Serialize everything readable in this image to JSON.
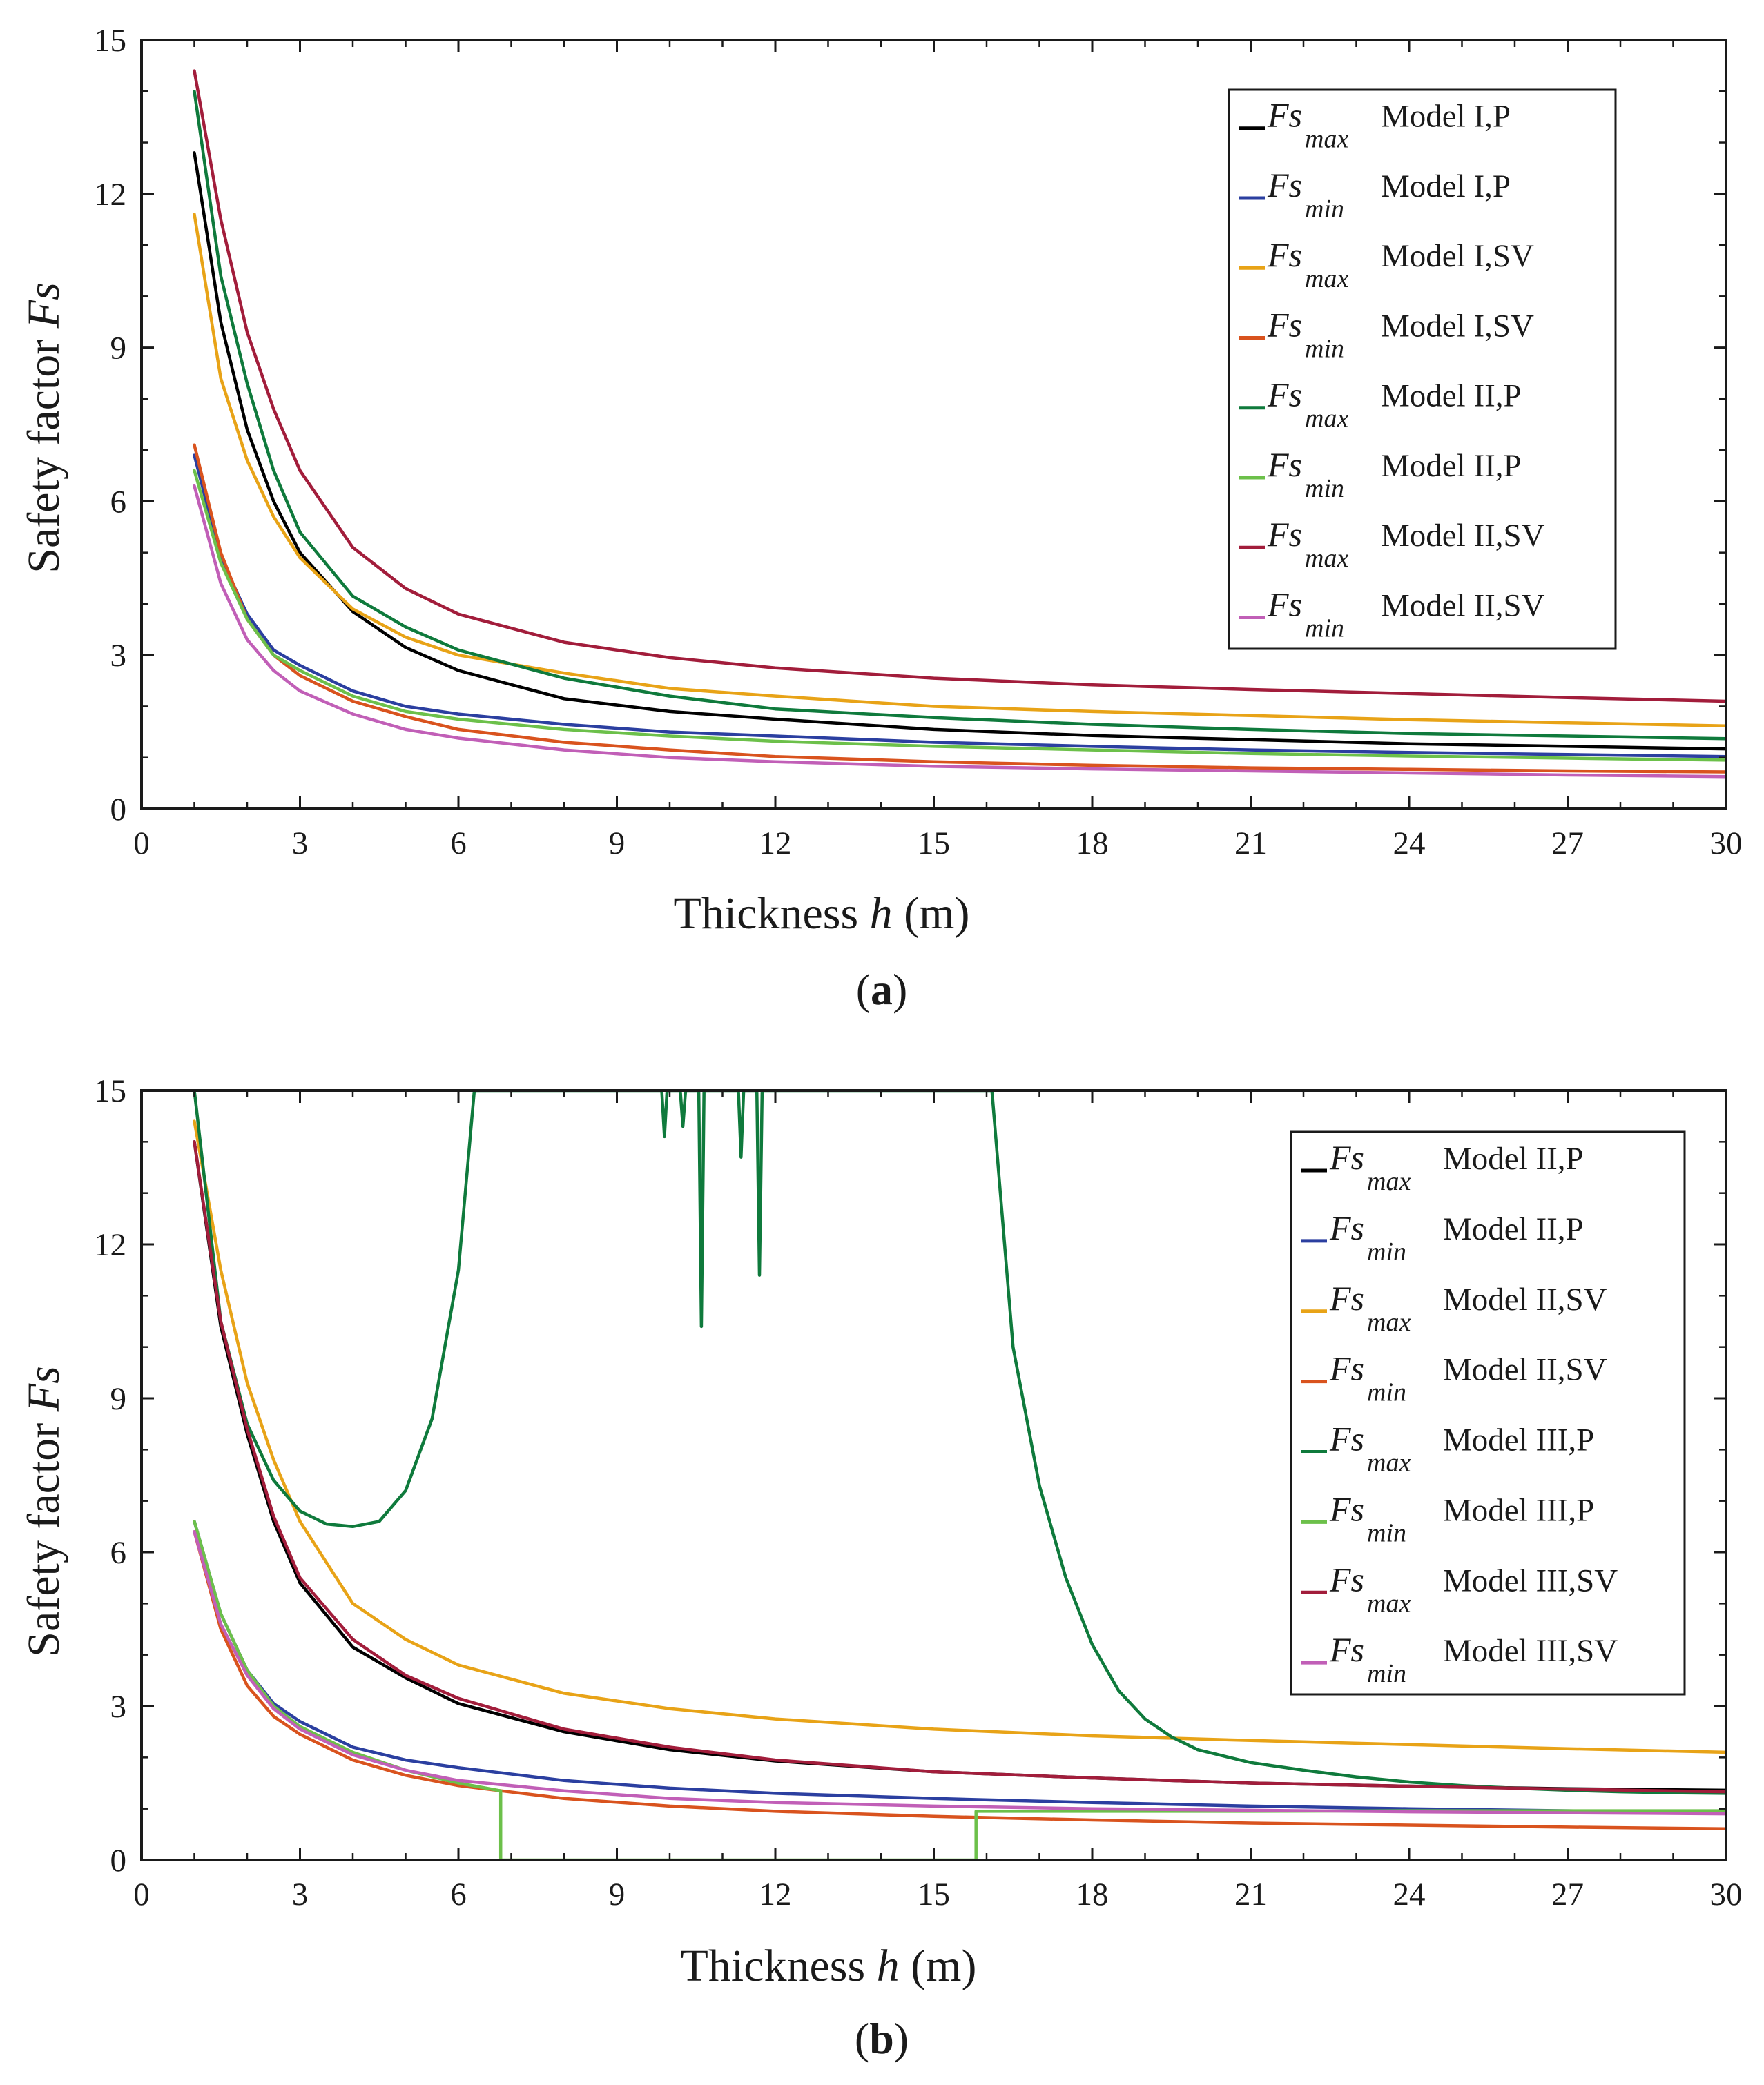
{
  "chart_data": [
    {
      "type": "line",
      "panel_label": "a",
      "xlabel": "Thickness",
      "xlabel_var": "h",
      "xlabel_unit": "(m)",
      "ylabel": "Safety factor",
      "ylabel_var": "Fs",
      "xlim": [
        0,
        30
      ],
      "ylim": [
        0,
        15
      ],
      "xticks": [
        0,
        3,
        6,
        9,
        12,
        15,
        18,
        21,
        24,
        27,
        30
      ],
      "yticks": [
        0,
        3,
        6,
        9,
        12,
        15
      ],
      "legend_position": "top-right",
      "series": [
        {
          "name": "Fs max Model I,P",
          "fs": "Fs",
          "sub": "max",
          "label": "Model I,P",
          "color": "#000000",
          "x": [
            1,
            1.5,
            2,
            2.5,
            3,
            4,
            5,
            6,
            8,
            10,
            12,
            15,
            18,
            21,
            24,
            27,
            30
          ],
          "y": [
            12.8,
            9.5,
            7.4,
            6.0,
            5.0,
            3.85,
            3.15,
            2.7,
            2.15,
            1.9,
            1.75,
            1.55,
            1.43,
            1.35,
            1.27,
            1.22,
            1.17
          ]
        },
        {
          "name": "Fs min Model I,P",
          "fs": "Fs",
          "sub": "min",
          "label": "Model I,P",
          "color": "#2b3fa0",
          "x": [
            1,
            1.5,
            2,
            2.5,
            3,
            4,
            5,
            6,
            8,
            10,
            12,
            15,
            18,
            21,
            24,
            27,
            30
          ],
          "y": [
            6.9,
            4.9,
            3.8,
            3.1,
            2.8,
            2.3,
            2.0,
            1.85,
            1.65,
            1.5,
            1.42,
            1.3,
            1.22,
            1.15,
            1.1,
            1.06,
            1.02
          ]
        },
        {
          "name": "Fs max Model I,SV",
          "fs": "Fs",
          "sub": "max",
          "label": "Model I,SV",
          "color": "#e8a317",
          "x": [
            1,
            1.5,
            2,
            2.5,
            3,
            4,
            5,
            6,
            8,
            10,
            12,
            15,
            18,
            21,
            24,
            27,
            30
          ],
          "y": [
            11.6,
            8.4,
            6.8,
            5.7,
            4.9,
            3.9,
            3.35,
            3.0,
            2.65,
            2.35,
            2.2,
            2.0,
            1.9,
            1.82,
            1.74,
            1.68,
            1.62
          ]
        },
        {
          "name": "Fs min Model I,SV",
          "fs": "Fs",
          "sub": "min",
          "label": "Model I,SV",
          "color": "#d9531e",
          "x": [
            1,
            1.5,
            2,
            2.5,
            3,
            4,
            5,
            6,
            8,
            10,
            12,
            15,
            18,
            21,
            24,
            27,
            30
          ],
          "y": [
            7.1,
            5.0,
            3.7,
            3.0,
            2.6,
            2.1,
            1.8,
            1.55,
            1.3,
            1.15,
            1.02,
            0.92,
            0.85,
            0.8,
            0.77,
            0.74,
            0.72
          ]
        },
        {
          "name": "Fs max Model II,P",
          "fs": "Fs",
          "sub": "max",
          "label": "Model II,P",
          "color": "#0f7a3c",
          "x": [
            1,
            1.5,
            2,
            2.5,
            3,
            4,
            5,
            6,
            8,
            10,
            12,
            15,
            18,
            21,
            24,
            27,
            30
          ],
          "y": [
            14.0,
            10.4,
            8.3,
            6.6,
            5.4,
            4.15,
            3.55,
            3.1,
            2.55,
            2.2,
            1.95,
            1.78,
            1.65,
            1.55,
            1.47,
            1.42,
            1.37
          ]
        },
        {
          "name": "Fs min Model II,P",
          "fs": "Fs",
          "sub": "min",
          "label": "Model II,P",
          "color": "#6cc04a",
          "x": [
            1,
            1.5,
            2,
            2.5,
            3,
            4,
            5,
            6,
            8,
            10,
            12,
            15,
            18,
            21,
            24,
            27,
            30
          ],
          "y": [
            6.6,
            4.8,
            3.7,
            3.0,
            2.7,
            2.2,
            1.9,
            1.75,
            1.55,
            1.42,
            1.32,
            1.22,
            1.15,
            1.08,
            1.03,
            0.99,
            0.95
          ]
        },
        {
          "name": "Fs max Model II,SV",
          "fs": "Fs",
          "sub": "max",
          "label": "Model II,SV",
          "color": "#a21d3b",
          "x": [
            1,
            1.5,
            2,
            2.5,
            3,
            4,
            5,
            6,
            8,
            10,
            12,
            15,
            18,
            21,
            24,
            27,
            30
          ],
          "y": [
            14.4,
            11.5,
            9.3,
            7.8,
            6.6,
            5.1,
            4.3,
            3.8,
            3.25,
            2.95,
            2.75,
            2.55,
            2.42,
            2.33,
            2.25,
            2.17,
            2.1
          ]
        },
        {
          "name": "Fs min Model II,SV",
          "fs": "Fs",
          "sub": "min",
          "label": "Model II,SV",
          "color": "#c15fb7",
          "x": [
            1,
            1.5,
            2,
            2.5,
            3,
            4,
            5,
            6,
            8,
            10,
            12,
            15,
            18,
            21,
            24,
            27,
            30
          ],
          "y": [
            6.3,
            4.4,
            3.3,
            2.7,
            2.3,
            1.85,
            1.55,
            1.38,
            1.15,
            1.0,
            0.92,
            0.83,
            0.78,
            0.74,
            0.7,
            0.66,
            0.63
          ]
        }
      ]
    },
    {
      "type": "line",
      "panel_label": "b",
      "xlabel": "Thickness",
      "xlabel_var": "h",
      "xlabel_unit": "(m)",
      "ylabel": "Safety factor",
      "ylabel_var": "Fs",
      "xlim": [
        0,
        30
      ],
      "ylim": [
        0,
        15
      ],
      "xticks": [
        0,
        3,
        6,
        9,
        12,
        15,
        18,
        21,
        24,
        27,
        30
      ],
      "yticks": [
        0,
        3,
        6,
        9,
        12,
        15
      ],
      "legend_position": "right",
      "series": [
        {
          "name": "Fs max Model II,P",
          "fs": "Fs",
          "sub": "max",
          "label": "Model II,P",
          "color": "#000000",
          "x": [
            1,
            1.5,
            2,
            2.5,
            3,
            4,
            5,
            6,
            8,
            10,
            12,
            15,
            18,
            21,
            24,
            27,
            30
          ],
          "y": [
            14.0,
            10.4,
            8.3,
            6.6,
            5.4,
            4.15,
            3.55,
            3.05,
            2.5,
            2.15,
            1.93,
            1.72,
            1.6,
            1.5,
            1.44,
            1.39,
            1.36
          ]
        },
        {
          "name": "Fs min Model II,P",
          "fs": "Fs",
          "sub": "min",
          "label": "Model II,P",
          "color": "#2b3fa0",
          "x": [
            1,
            1.5,
            2,
            2.5,
            3,
            4,
            5,
            6,
            8,
            10,
            12,
            15,
            18,
            21,
            24,
            27,
            30
          ],
          "y": [
            6.6,
            4.8,
            3.7,
            3.05,
            2.7,
            2.2,
            1.95,
            1.8,
            1.55,
            1.4,
            1.3,
            1.2,
            1.12,
            1.05,
            1.0,
            0.96,
            0.92
          ]
        },
        {
          "name": "Fs max Model II,SV",
          "fs": "Fs",
          "sub": "max",
          "label": "Model II,SV",
          "color": "#e8a317",
          "x": [
            1,
            1.5,
            2,
            2.5,
            3,
            4,
            5,
            6,
            8,
            10,
            12,
            15,
            18,
            21,
            24,
            27,
            30
          ],
          "y": [
            14.4,
            11.5,
            9.3,
            7.8,
            6.6,
            5.0,
            4.3,
            3.8,
            3.25,
            2.95,
            2.75,
            2.55,
            2.42,
            2.33,
            2.25,
            2.17,
            2.1
          ]
        },
        {
          "name": "Fs min Model II,SV",
          "fs": "Fs",
          "sub": "min",
          "label": "Model II,SV",
          "color": "#d9531e",
          "x": [
            1,
            1.5,
            2,
            2.5,
            3,
            4,
            5,
            6,
            8,
            10,
            12,
            15,
            18,
            21,
            24,
            27,
            30
          ],
          "y": [
            6.4,
            4.5,
            3.4,
            2.8,
            2.45,
            1.95,
            1.65,
            1.45,
            1.2,
            1.05,
            0.95,
            0.85,
            0.78,
            0.72,
            0.68,
            0.64,
            0.61
          ]
        },
        {
          "name": "Fs max Model III,P",
          "fs": "Fs",
          "sub": "max",
          "label": "Model III,P",
          "color": "#0f7a3c",
          "x": [
            1,
            1.5,
            2,
            2.5,
            3,
            3.5,
            4,
            4.5,
            5,
            5.5,
            6,
            6.3,
            9.85,
            9.9,
            9.95,
            10.2,
            10.25,
            10.3,
            10.55,
            10.6,
            10.65,
            10.7,
            11.3,
            11.35,
            11.4,
            11.65,
            11.7,
            11.75,
            16.1,
            16.5,
            17,
            17.5,
            18,
            18.5,
            19,
            19.5,
            20,
            21,
            22,
            23,
            24,
            25,
            26,
            27,
            28,
            29,
            30
          ],
          "y": [
            15.0,
            10.5,
            8.5,
            7.4,
            6.8,
            6.55,
            6.5,
            6.6,
            7.2,
            8.6,
            11.5,
            15.0,
            15.0,
            14.1,
            15.0,
            15.0,
            14.3,
            15.0,
            15.0,
            10.4,
            15.0,
            15.0,
            15.0,
            13.7,
            15.0,
            15.0,
            11.4,
            15.0,
            15.0,
            10.0,
            7.3,
            5.5,
            4.2,
            3.3,
            2.75,
            2.4,
            2.15,
            1.9,
            1.75,
            1.62,
            1.52,
            1.45,
            1.4,
            1.36,
            1.33,
            1.31,
            1.3
          ]
        },
        {
          "name": "Fs min Model III,P",
          "fs": "Fs",
          "sub": "min",
          "label": "Model III,P",
          "color": "#6cc04a",
          "x": [
            1,
            1.5,
            2,
            2.5,
            3,
            4,
            5,
            6,
            6.8,
            6.8,
            15.8,
            15.8,
            18,
            21,
            24,
            27,
            30
          ],
          "y": [
            6.6,
            4.8,
            3.7,
            3.0,
            2.6,
            2.1,
            1.75,
            1.5,
            1.35,
            0,
            0,
            0.95,
            0.95,
            0.95,
            0.96,
            0.96,
            0.96
          ]
        },
        {
          "name": "Fs max Model III,SV",
          "fs": "Fs",
          "sub": "max",
          "label": "Model III,SV",
          "color": "#a21d3b",
          "x": [
            1,
            1.5,
            2,
            2.5,
            3,
            4,
            5,
            6,
            8,
            10,
            12,
            15,
            18,
            21,
            24,
            27,
            30
          ],
          "y": [
            14.0,
            10.5,
            8.4,
            6.7,
            5.5,
            4.3,
            3.6,
            3.15,
            2.55,
            2.2,
            1.95,
            1.72,
            1.6,
            1.5,
            1.44,
            1.38,
            1.33
          ]
        },
        {
          "name": "Fs min Model III,SV",
          "fs": "Fs",
          "sub": "min",
          "label": "Model III,SV",
          "color": "#c15fb7",
          "x": [
            1,
            1.5,
            2,
            2.5,
            3,
            4,
            5,
            6,
            8,
            10,
            12,
            15,
            18,
            21,
            24,
            27,
            30
          ],
          "y": [
            6.4,
            4.6,
            3.6,
            2.95,
            2.55,
            2.05,
            1.75,
            1.55,
            1.35,
            1.2,
            1.12,
            1.05,
            1.0,
            0.97,
            0.94,
            0.92,
            0.9
          ]
        }
      ]
    }
  ]
}
